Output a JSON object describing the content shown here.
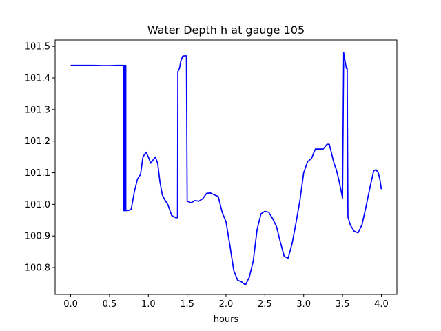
{
  "chart_data": {
    "type": "line",
    "title": "Water Depth h at gauge 105",
    "xlabel": "hours",
    "ylabel": "",
    "xlim": [
      -0.2,
      4.2
    ],
    "ylim": [
      100.715,
      101.52
    ],
    "xticks": [
      0.0,
      0.5,
      1.0,
      1.5,
      2.0,
      2.5,
      3.0,
      3.5,
      4.0
    ],
    "xtick_labels": [
      "0.0",
      "0.5",
      "1.0",
      "1.5",
      "2.0",
      "2.5",
      "3.0",
      "3.5",
      "4.0"
    ],
    "yticks": [
      100.8,
      100.9,
      101.0,
      101.1,
      101.2,
      101.3,
      101.4,
      101.5
    ],
    "ytick_labels": [
      "100.8",
      "100.9",
      "101.0",
      "101.1",
      "101.2",
      "101.3",
      "101.4",
      "101.5"
    ],
    "grid": false,
    "legend": "none",
    "series": [
      {
        "color": "#0000ff",
        "x": [
          0.0,
          0.3,
          0.4,
          0.5,
          0.6,
          0.68,
          0.685,
          0.69,
          0.69,
          0.7,
          0.7,
          0.71,
          0.71,
          0.75,
          0.78,
          0.82,
          0.86,
          0.9,
          0.93,
          0.97,
          1.0,
          1.03,
          1.06,
          1.09,
          1.12,
          1.15,
          1.18,
          1.21,
          1.25,
          1.3,
          1.35,
          1.375,
          1.38,
          1.4,
          1.42,
          1.44,
          1.46,
          1.48,
          1.49,
          1.5,
          1.52,
          1.55,
          1.6,
          1.65,
          1.7,
          1.75,
          1.8,
          1.85,
          1.9,
          1.95,
          2.0,
          2.05,
          2.1,
          2.15,
          2.2,
          2.25,
          2.3,
          2.35,
          2.4,
          2.45,
          2.5,
          2.55,
          2.6,
          2.65,
          2.7,
          2.75,
          2.8,
          2.85,
          2.9,
          2.95,
          3.0,
          3.05,
          3.1,
          3.15,
          3.2,
          3.25,
          3.3,
          3.33,
          3.36,
          3.39,
          3.42,
          3.45,
          3.48,
          3.5,
          3.515,
          3.52,
          3.55,
          3.56,
          3.57,
          3.6,
          3.65,
          3.7,
          3.75,
          3.8,
          3.85,
          3.9,
          3.93,
          3.96,
          3.98,
          4.0
        ],
        "y": [
          101.44,
          101.44,
          101.439,
          101.439,
          101.44,
          101.44,
          100.98,
          101.44,
          100.98,
          101.44,
          100.98,
          101.44,
          100.98,
          100.981,
          100.985,
          101.04,
          101.08,
          101.095,
          101.15,
          101.165,
          101.15,
          101.13,
          101.14,
          101.15,
          101.13,
          101.07,
          101.03,
          101.015,
          101.0,
          100.965,
          100.958,
          100.958,
          101.42,
          101.43,
          101.455,
          101.468,
          101.47,
          101.47,
          101.47,
          101.01,
          101.008,
          101.005,
          101.012,
          101.01,
          101.018,
          101.035,
          101.036,
          101.03,
          101.025,
          100.975,
          100.945,
          100.87,
          100.79,
          100.76,
          100.755,
          100.745,
          100.77,
          100.82,
          100.92,
          100.97,
          100.978,
          100.975,
          100.955,
          100.93,
          100.88,
          100.835,
          100.83,
          100.875,
          100.94,
          101.01,
          101.1,
          101.135,
          101.145,
          101.175,
          101.175,
          101.175,
          101.19,
          101.19,
          101.16,
          101.13,
          101.11,
          101.08,
          101.045,
          101.02,
          101.48,
          101.47,
          101.43,
          101.43,
          100.96,
          100.935,
          100.915,
          100.91,
          100.935,
          100.99,
          101.05,
          101.105,
          101.11,
          101.1,
          101.08,
          101.048
        ]
      }
    ]
  }
}
